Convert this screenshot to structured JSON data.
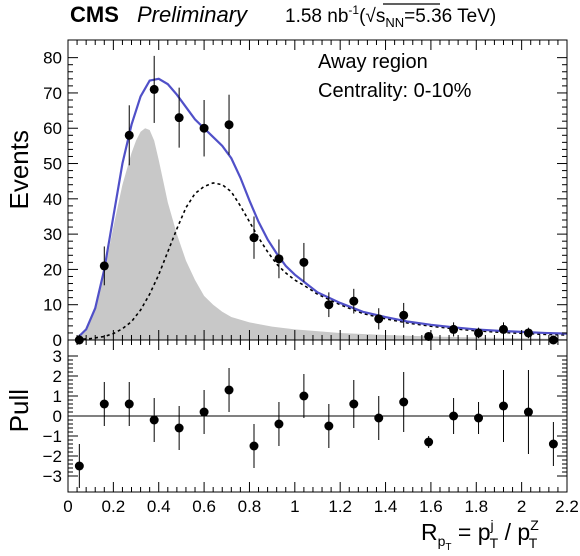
{
  "header": {
    "experiment": "CMS",
    "status": "Preliminary",
    "lumi": "1.58 nb",
    "lumi_exp": "-1",
    "energy_open": "(",
    "sqrt_sym": "√",
    "snn_s": "s",
    "snn_sub": "NN",
    "energy_val": "=5.36 TeV)"
  },
  "annotations": {
    "region": "Away region",
    "centrality": "Centrality: 0-10%"
  },
  "colors": {
    "total_fit": "#5050c8",
    "component_broad": "#000000",
    "component_peak_fill": "#c8c8c8",
    "data": "#000000"
  },
  "chart_data": [
    {
      "type": "scatter",
      "panel": "main",
      "ylabel": "Events",
      "xlim": [
        0,
        2.2
      ],
      "ylim": [
        0,
        85
      ],
      "y_ticks": [
        0,
        10,
        20,
        30,
        40,
        50,
        60,
        70,
        80
      ],
      "series": [
        {
          "kind": "data_points",
          "x": [
            0.05,
            0.16,
            0.27,
            0.38,
            0.49,
            0.6,
            0.71,
            0.82,
            0.93,
            1.04,
            1.15,
            1.26,
            1.37,
            1.48,
            1.59,
            1.7,
            1.81,
            1.92,
            2.03,
            2.14
          ],
          "y": [
            0,
            21,
            58,
            71,
            63,
            60,
            61,
            29,
            23,
            22,
            10,
            11,
            6,
            7,
            1,
            3,
            2,
            3,
            2,
            0
          ],
          "err": [
            1.5,
            5.5,
            8.5,
            9.5,
            8.5,
            8.0,
            8.5,
            6.0,
            5.5,
            5.5,
            3.5,
            3.5,
            3.0,
            3.5,
            1.0,
            2.0,
            1.5,
            2.0,
            1.5,
            1.0
          ]
        },
        {
          "kind": "total_fit_line",
          "x": [
            0.04,
            0.08,
            0.12,
            0.16,
            0.2,
            0.24,
            0.28,
            0.32,
            0.36,
            0.4,
            0.44,
            0.48,
            0.52,
            0.56,
            0.6,
            0.64,
            0.68,
            0.72,
            0.76,
            0.8,
            0.84,
            0.88,
            0.92,
            0.96,
            1.0,
            1.04,
            1.1,
            1.2,
            1.3,
            1.4,
            1.5,
            1.6,
            1.7,
            1.8,
            1.9,
            2.0,
            2.1,
            2.2
          ],
          "y": [
            0.5,
            3,
            9,
            20,
            35,
            50,
            61,
            69,
            73.5,
            74,
            72.5,
            69.5,
            66,
            62.5,
            60,
            57.5,
            55,
            51.5,
            46,
            39.5,
            33.5,
            28.5,
            24.5,
            21,
            18.5,
            16.5,
            13.5,
            10.5,
            8,
            6.5,
            5.2,
            4.3,
            3.6,
            3,
            2.6,
            2.3,
            2,
            1.8
          ]
        },
        {
          "kind": "broad_component_dashed",
          "x": [
            0.04,
            0.1,
            0.16,
            0.2,
            0.24,
            0.28,
            0.32,
            0.36,
            0.4,
            0.44,
            0.48,
            0.52,
            0.56,
            0.6,
            0.64,
            0.68,
            0.72,
            0.76,
            0.8,
            0.84,
            0.88,
            0.92,
            0.96,
            1.0,
            1.04,
            1.1,
            1.2,
            1.3,
            1.4,
            1.5,
            1.6,
            1.7,
            1.8,
            1.9,
            2.0,
            2.1,
            2.2
          ],
          "y": [
            0.1,
            0.4,
            1.0,
            1.8,
            3.2,
            5.2,
            8.5,
            13,
            18.5,
            25,
            31.5,
            37.5,
            41.5,
            43.5,
            44.5,
            44,
            42,
            38,
            33.5,
            29,
            25,
            21.5,
            19,
            17,
            15.5,
            13,
            10,
            7.5,
            6,
            4.8,
            3.9,
            3.2,
            2.6,
            2.2,
            1.9,
            1.6,
            1.4
          ]
        },
        {
          "kind": "peak_component_filled",
          "x": [
            0.04,
            0.08,
            0.12,
            0.16,
            0.2,
            0.24,
            0.28,
            0.3,
            0.32,
            0.34,
            0.36,
            0.38,
            0.4,
            0.42,
            0.44,
            0.48,
            0.52,
            0.56,
            0.6,
            0.64,
            0.68,
            0.72,
            0.8,
            0.9,
            1.0,
            1.2,
            1.4,
            1.6,
            1.8,
            2.0,
            2.2
          ],
          "y": [
            0.3,
            2.5,
            8.5,
            19,
            32,
            44,
            53,
            56.5,
            59,
            60,
            59.5,
            56.5,
            51,
            45,
            39,
            30,
            22.5,
            17,
            12.5,
            10,
            8,
            6.5,
            5,
            3.8,
            3,
            2,
            1.4,
            1,
            0.7,
            0.5,
            0.3
          ]
        }
      ]
    },
    {
      "type": "scatter",
      "panel": "pull",
      "ylabel": "Pull",
      "xlabel_main": "R",
      "xlabel_sub": "p",
      "xlabel_subsub": "T",
      "xlabel_eq": " = p",
      "xlabel_num_sup": "j",
      "xlabel_num_sub": "T",
      "xlabel_slash": " / p",
      "xlabel_den_sup": "Z",
      "xlabel_den_sub": "T",
      "xlim": [
        0,
        2.2
      ],
      "ylim": [
        -3.8,
        3.8
      ],
      "x_ticks": [
        0,
        0.2,
        0.4,
        0.6,
        0.8,
        1,
        1.2,
        1.4,
        1.6,
        1.8,
        2,
        2.2
      ],
      "x_tick_labels": [
        "0",
        "0.2",
        "0.4",
        "0.6",
        "0.8",
        "1",
        "1.2",
        "1.4",
        "1.6",
        "1.8",
        "2",
        "2.2"
      ],
      "y_ticks": [
        -3,
        -2,
        -1,
        0,
        1,
        2,
        3
      ],
      "x": [
        0.05,
        0.16,
        0.27,
        0.38,
        0.49,
        0.6,
        0.71,
        0.82,
        0.93,
        1.04,
        1.15,
        1.26,
        1.37,
        1.48,
        1.59,
        1.7,
        1.81,
        1.92,
        2.03,
        2.14
      ],
      "y": [
        -2.5,
        0.6,
        0.6,
        -0.2,
        -0.6,
        0.2,
        1.3,
        -1.5,
        -0.4,
        1.0,
        -0.5,
        0.6,
        -0.1,
        0.7,
        -1.3,
        0.0,
        -0.1,
        0.5,
        0.2,
        -1.4
      ],
      "err": [
        1.1,
        1.1,
        1.1,
        1.1,
        1.1,
        1.1,
        1.1,
        1.1,
        1.1,
        1.1,
        1.1,
        1.2,
        1.1,
        1.5,
        0.3,
        0.9,
        0.8,
        1.8,
        2.1,
        1.1
      ]
    }
  ]
}
